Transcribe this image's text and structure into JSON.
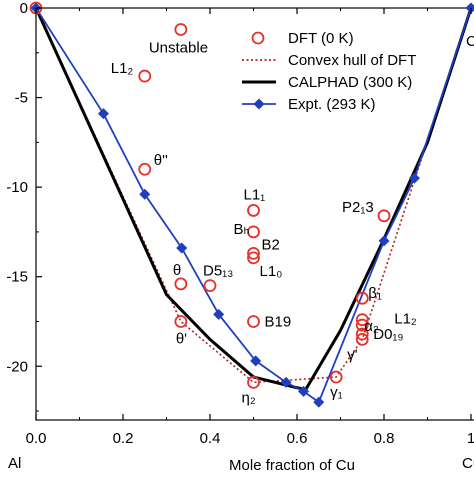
{
  "chart_data": {
    "type": "scatter",
    "title": "",
    "xlabel": "Mole fraction of Cu",
    "ylabel": "",
    "xlim": [
      0,
      1
    ],
    "ylim": [
      -23,
      0
    ],
    "x_ticks": [
      "0.0",
      "0.2",
      "0.4",
      "0.6",
      "0.8",
      "1"
    ],
    "y_ticks": [
      "0",
      "-5",
      "-10",
      "-15",
      "-20"
    ],
    "x_end_labels": {
      "left": "Al",
      "right": "Cu"
    },
    "right_edge_label": "C",
    "legend_position": "top-right",
    "legend": [
      {
        "label": "DFT (0 K)",
        "style": "open-circle",
        "color": "#e8302a"
      },
      {
        "label": "Convex hull of DFT",
        "style": "dotted-line",
        "color": "#b02020"
      },
      {
        "label": "CALPHAD (300 K)",
        "style": "solid-line",
        "color": "#000000"
      },
      {
        "label": "Expt. (293 K)",
        "style": "line-diamond",
        "color": "#1f3fbf"
      }
    ],
    "series": [
      {
        "name": "DFT (0 K)",
        "points": [
          {
            "x": 0.0,
            "y": 0.0
          },
          {
            "x": 0.333,
            "y": -1.2,
            "label": "Unstable"
          },
          {
            "x": 0.25,
            "y": -3.8,
            "label": "L1₂"
          },
          {
            "x": 0.25,
            "y": -9.0,
            "label": "θ''"
          },
          {
            "x": 0.333,
            "y": -15.4,
            "label": "θ"
          },
          {
            "x": 0.333,
            "y": -17.5,
            "label": "θ'"
          },
          {
            "x": 0.4,
            "y": -15.5,
            "label": "D5₁₃"
          },
          {
            "x": 0.5,
            "y": -11.3,
            "label": "L1₁"
          },
          {
            "x": 0.5,
            "y": -12.5,
            "label": "Bₕ"
          },
          {
            "x": 0.5,
            "y": -13.7,
            "label": "B2"
          },
          {
            "x": 0.5,
            "y": -13.95,
            "label": "L1₀"
          },
          {
            "x": 0.5,
            "y": -17.5,
            "label": "B19"
          },
          {
            "x": 0.5,
            "y": -20.9,
            "label": "η₂"
          },
          {
            "x": 0.69,
            "y": -20.6,
            "label": "γ₁"
          },
          {
            "x": 0.75,
            "y": -16.2,
            "label": "β₁"
          },
          {
            "x": 0.75,
            "y": -17.4,
            "label": "L1₂"
          },
          {
            "x": 0.75,
            "y": -17.7,
            "label": "α₂"
          },
          {
            "x": 0.75,
            "y": -18.2,
            "label": "D0₁₉"
          },
          {
            "x": 0.75,
            "y": -18.5,
            "label": "γ'"
          },
          {
            "x": 0.8,
            "y": -11.6,
            "label": "P2₁3"
          }
        ]
      },
      {
        "name": "Convex hull of DFT",
        "x": [
          0.0,
          0.333,
          0.5,
          0.69,
          0.75,
          1.0
        ],
        "y": [
          0.0,
          -17.5,
          -20.9,
          -20.6,
          -18.5,
          0.0
        ]
      },
      {
        "name": "CALPHAD (300 K)",
        "x": [
          0.0,
          0.3,
          0.4,
          0.5,
          0.6,
          0.62,
          0.7,
          0.8,
          0.9,
          1.0
        ],
        "y": [
          0.0,
          -16.0,
          -18.5,
          -20.6,
          -21.2,
          -21.3,
          -18.0,
          -12.9,
          -7.5,
          0.0
        ]
      },
      {
        "name": "Expt. (293 K)",
        "x": [
          0.0,
          0.155,
          0.25,
          0.335,
          0.42,
          0.505,
          0.575,
          0.615,
          0.65,
          0.8,
          0.87,
          1.0
        ],
        "y": [
          0.0,
          -5.9,
          -10.4,
          -13.4,
          -17.1,
          -19.7,
          -20.9,
          -21.4,
          -22.0,
          -13.0,
          -9.5,
          0.0
        ]
      }
    ]
  }
}
